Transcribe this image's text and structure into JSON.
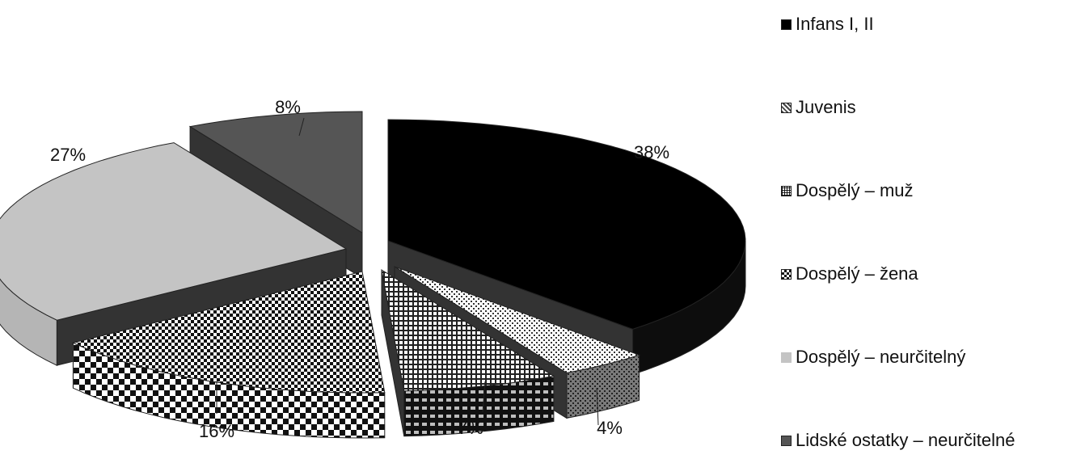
{
  "chart_data": {
    "type": "pie",
    "title": "",
    "categories": [
      "Infans I, II",
      "Juvenis",
      "Dospělý – muž",
      "Dospělý – žena",
      "Dospělý – neurčitelný",
      "Lidské ostatky – neurčitelné"
    ],
    "values": [
      38,
      4,
      7,
      16,
      27,
      8
    ],
    "labels": [
      "38%",
      "4%",
      "7%",
      "16%",
      "27%",
      "8%"
    ],
    "legend_position": "right",
    "exploded": true,
    "three_d": true,
    "patterns": [
      "solid",
      "dots",
      "grid",
      "checker",
      "solid",
      "solid"
    ],
    "colors": [
      "#000000",
      "#cfcfcf",
      "#9a9a9a",
      "#ffffff",
      "#c4c4c4",
      "#555555"
    ]
  }
}
